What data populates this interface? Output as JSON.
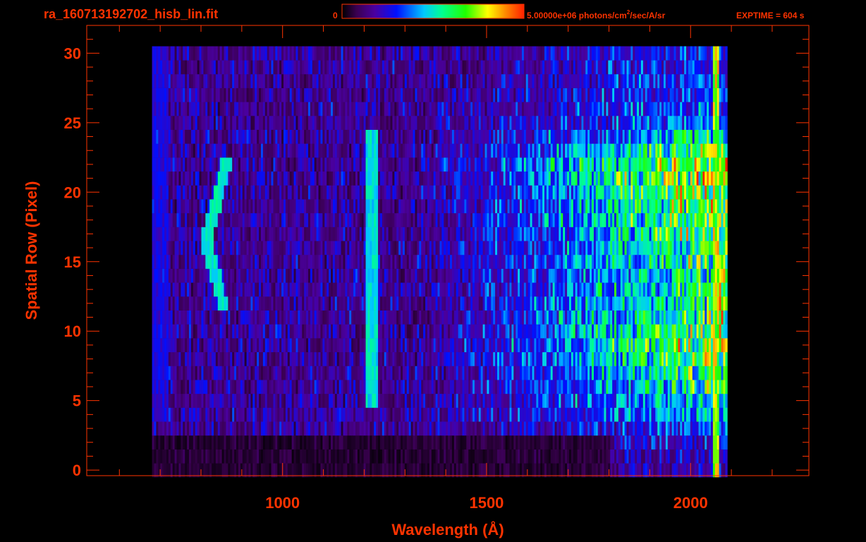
{
  "filename": "ra_160713192702_hisb_lin.fit",
  "colorbar": {
    "min_label": "0",
    "max_label": "5.00000e+06 photons/cm",
    "unit_superscript": "2",
    "unit_suffix": "/sec/A/sr",
    "colormap": "rainbow (black-purple-blue-cyan-green-yellow-orange-red)"
  },
  "exptime": "EXPTIME = 604 s",
  "accent_color": "#ff3300",
  "chart_data": {
    "type": "heatmap",
    "title": "ra_160713192702_hisb_lin.fit",
    "xlabel": "Wavelength (Å)",
    "ylabel": "Spatial Row (Pixel)",
    "xlim": [
      520,
      2290
    ],
    "ylim": [
      -0.4,
      32
    ],
    "x_ticks": [
      1000,
      1500,
      2000
    ],
    "x_tick_labels": [
      "1000",
      "1500",
      "2000"
    ],
    "y_ticks": [
      0,
      5,
      10,
      15,
      20,
      25,
      30
    ],
    "y_tick_labels": [
      "0",
      "5",
      "10",
      "15",
      "20",
      "25",
      "30"
    ],
    "grid": false,
    "data_extent": {
      "wavelength_min": 680,
      "wavelength_max": 2090,
      "row_min": 0,
      "row_max": 30
    },
    "features": [
      {
        "wavelength": 1216,
        "rows": [
          5,
          24
        ]
      },
      {
        "wavelength": 850,
        "rows": [
          12,
          22
        ]
      },
      {
        "wavelength": 2060,
        "rows": [
          0,
          30
        ]
      }
    ],
    "row_profile": [
      {
        "row": 0,
        "level": 0.05
      },
      {
        "row": 1,
        "level": 0.05
      },
      {
        "row": 2,
        "level": 0.12
      },
      {
        "row": 3,
        "level": 0.22
      },
      {
        "row": 4,
        "level": 0.35
      },
      {
        "row": 5,
        "level": 0.45
      },
      {
        "row": 6,
        "level": 0.58
      },
      {
        "row": 7,
        "level": 0.62
      },
      {
        "row": 8,
        "level": 0.75
      },
      {
        "row": 9,
        "level": 0.8
      },
      {
        "row": 10,
        "level": 0.72
      },
      {
        "row": 11,
        "level": 0.68
      },
      {
        "row": 12,
        "level": 0.6
      },
      {
        "row": 13,
        "level": 0.62
      },
      {
        "row": 14,
        "level": 0.58
      },
      {
        "row": 15,
        "level": 0.65
      },
      {
        "row": 16,
        "level": 0.6
      },
      {
        "row": 17,
        "level": 0.7
      },
      {
        "row": 18,
        "level": 0.72
      },
      {
        "row": 19,
        "level": 0.75
      },
      {
        "row": 20,
        "level": 0.78
      },
      {
        "row": 21,
        "level": 0.85
      },
      {
        "row": 22,
        "level": 0.9
      },
      {
        "row": 23,
        "level": 0.75
      },
      {
        "row": 24,
        "level": 0.5
      },
      {
        "row": 25,
        "level": 0.3
      },
      {
        "row": 26,
        "level": 0.25
      },
      {
        "row": 27,
        "level": 0.25
      },
      {
        "row": 28,
        "level": 0.22
      },
      {
        "row": 29,
        "level": 0.2
      },
      {
        "row": 30,
        "level": 0.18
      }
    ]
  }
}
